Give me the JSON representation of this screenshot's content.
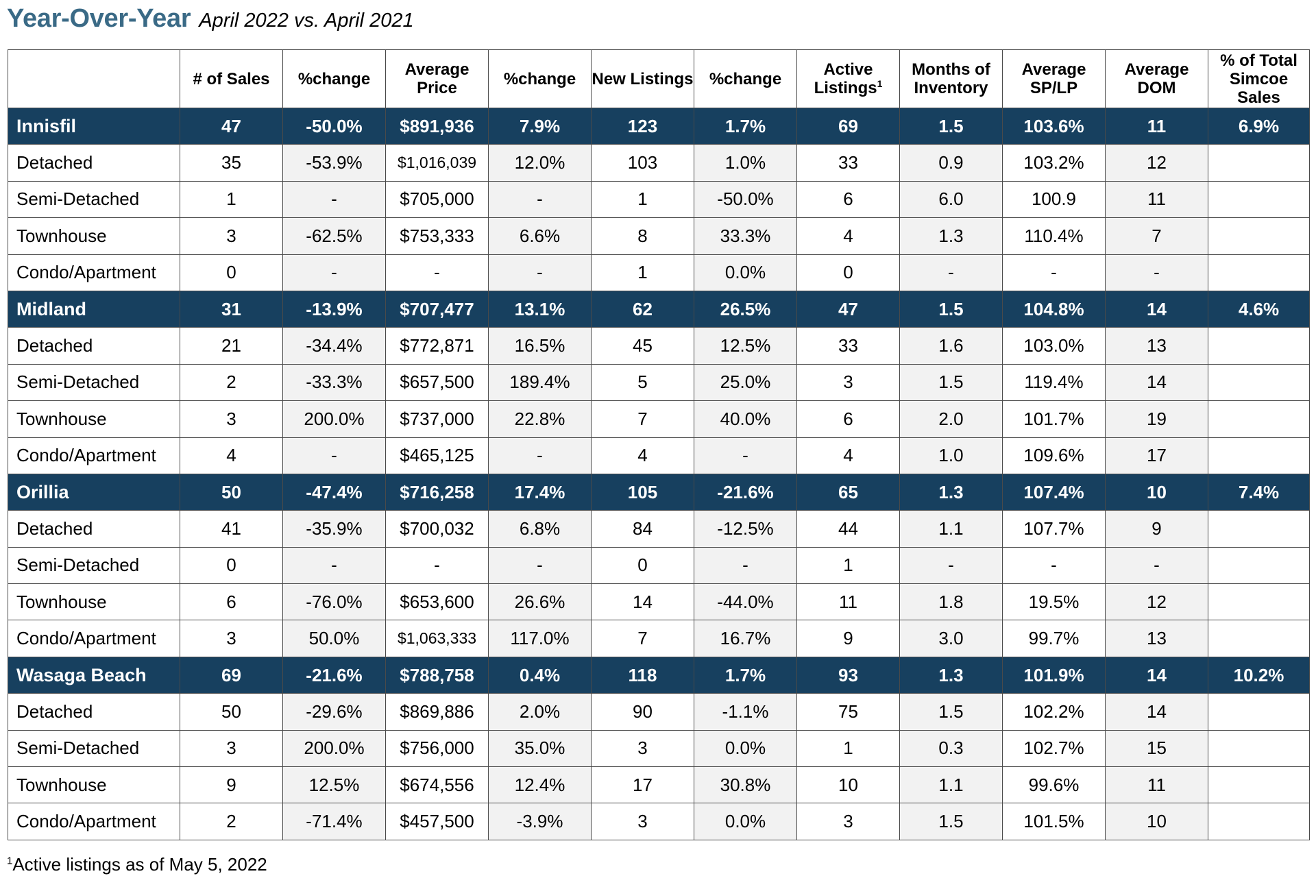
{
  "title": {
    "main": "Year-Over-Year",
    "sub": "April 2022 vs. April 2021"
  },
  "columns": [
    "",
    "# of Sales",
    "%change",
    "Average Price",
    "%change",
    "New Listings",
    "%change",
    "Active Listings",
    "Months of Inventory",
    "Average SP/LP",
    "Average DOM",
    "% of Total Simcoe Sales"
  ],
  "active_listings_marker": "1",
  "rows": [
    {
      "group": true,
      "cells": [
        "Innisfil",
        "47",
        "-50.0%",
        "$891,936",
        "7.9%",
        "123",
        "1.7%",
        "69",
        "1.5",
        "103.6%",
        "11",
        "6.9%"
      ]
    },
    {
      "group": false,
      "cells": [
        "Detached",
        "35",
        "-53.9%",
        "$1,016,039",
        "12.0%",
        "103",
        "1.0%",
        "33",
        "0.9",
        "103.2%",
        "12",
        ""
      ]
    },
    {
      "group": false,
      "cells": [
        "Semi-Detached",
        "1",
        "-",
        "$705,000",
        "-",
        "1",
        "-50.0%",
        "6",
        "6.0",
        "100.9",
        "11",
        ""
      ]
    },
    {
      "group": false,
      "cells": [
        "Townhouse",
        "3",
        "-62.5%",
        "$753,333",
        "6.6%",
        "8",
        "33.3%",
        "4",
        "1.3",
        "110.4%",
        "7",
        ""
      ]
    },
    {
      "group": false,
      "cells": [
        "Condo/Apartment",
        "0",
        "-",
        "-",
        "-",
        "1",
        "0.0%",
        "0",
        "-",
        "-",
        "-",
        ""
      ]
    },
    {
      "group": true,
      "cells": [
        "Midland",
        "31",
        "-13.9%",
        "$707,477",
        "13.1%",
        "62",
        "26.5%",
        "47",
        "1.5",
        "104.8%",
        "14",
        "4.6%"
      ]
    },
    {
      "group": false,
      "cells": [
        "Detached",
        "21",
        "-34.4%",
        "$772,871",
        "16.5%",
        "45",
        "12.5%",
        "33",
        "1.6",
        "103.0%",
        "13",
        ""
      ]
    },
    {
      "group": false,
      "cells": [
        "Semi-Detached",
        "2",
        "-33.3%",
        "$657,500",
        "189.4%",
        "5",
        "25.0%",
        "3",
        "1.5",
        "119.4%",
        "14",
        ""
      ]
    },
    {
      "group": false,
      "cells": [
        "Townhouse",
        "3",
        "200.0%",
        "$737,000",
        "22.8%",
        "7",
        "40.0%",
        "6",
        "2.0",
        "101.7%",
        "19",
        ""
      ]
    },
    {
      "group": false,
      "cells": [
        "Condo/Apartment",
        "4",
        "-",
        "$465,125",
        "-",
        "4",
        "-",
        "4",
        "1.0",
        "109.6%",
        "17",
        ""
      ]
    },
    {
      "group": true,
      "cells": [
        "Orillia",
        "50",
        "-47.4%",
        "$716,258",
        "17.4%",
        "105",
        "-21.6%",
        "65",
        "1.3",
        "107.4%",
        "10",
        "7.4%"
      ]
    },
    {
      "group": false,
      "cells": [
        "Detached",
        "41",
        "-35.9%",
        "$700,032",
        "6.8%",
        "84",
        "-12.5%",
        "44",
        "1.1",
        "107.7%",
        "9",
        ""
      ]
    },
    {
      "group": false,
      "cells": [
        "Semi-Detached",
        "0",
        "-",
        "-",
        "-",
        "0",
        "-",
        "1",
        "-",
        "-",
        "-",
        ""
      ]
    },
    {
      "group": false,
      "cells": [
        "Townhouse",
        "6",
        "-76.0%",
        "$653,600",
        "26.6%",
        "14",
        "-44.0%",
        "11",
        "1.8",
        "19.5%",
        "12",
        ""
      ]
    },
    {
      "group": false,
      "cells": [
        "Condo/Apartment",
        "3",
        "50.0%",
        "$1,063,333",
        "117.0%",
        "7",
        "16.7%",
        "9",
        "3.0",
        "99.7%",
        "13",
        ""
      ]
    },
    {
      "group": true,
      "cells": [
        "Wasaga Beach",
        "69",
        "-21.6%",
        "$788,758",
        "0.4%",
        "118",
        "1.7%",
        "93",
        "1.3",
        "101.9%",
        "14",
        "10.2%"
      ]
    },
    {
      "group": false,
      "cells": [
        "Detached",
        "50",
        "-29.6%",
        "$869,886",
        "2.0%",
        "90",
        "-1.1%",
        "75",
        "1.5",
        "102.2%",
        "14",
        ""
      ]
    },
    {
      "group": false,
      "cells": [
        "Semi-Detached",
        "3",
        "200.0%",
        "$756,000",
        "35.0%",
        "3",
        "0.0%",
        "1",
        "0.3",
        "102.7%",
        "15",
        ""
      ]
    },
    {
      "group": false,
      "cells": [
        "Townhouse",
        "9",
        "12.5%",
        "$674,556",
        "12.4%",
        "17",
        "30.8%",
        "10",
        "1.1",
        "99.6%",
        "11",
        ""
      ]
    },
    {
      "group": false,
      "cells": [
        "Condo/Apartment",
        "2",
        "-71.4%",
        "$457,500",
        "-3.9%",
        "3",
        "0.0%",
        "3",
        "1.5",
        "101.5%",
        "10",
        ""
      ]
    }
  ],
  "footnote": {
    "marker": "1",
    "text": "Active listings as of May 5, 2022"
  },
  "colors": {
    "title": "#3a6a86",
    "group_row_bg": "#17405f",
    "group_row_text": "#ffffff",
    "shaded_column": "#f2f2f2"
  }
}
